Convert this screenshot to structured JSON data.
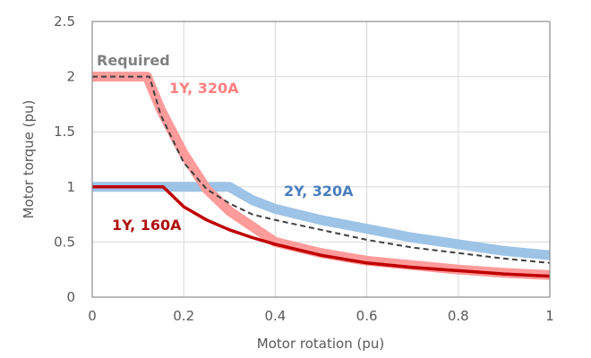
{
  "chart_data": {
    "type": "line",
    "title": "",
    "xlabel": "Motor rotation (pu)",
    "ylabel": "Motor torque (pu)",
    "xlim": [
      0,
      1
    ],
    "ylim": [
      0,
      2.5
    ],
    "xticks": [
      "0",
      "0.2",
      "0.4",
      "0.6",
      "0.8",
      "1"
    ],
    "yticks": [
      "0",
      "0.5",
      "1",
      "1.5",
      "2",
      "2.5"
    ],
    "grid": true,
    "series": [
      {
        "name": "2Y, 320A",
        "color": "#9DC3E6",
        "label_color": "#4A7EBB",
        "x": [
          0,
          0.3,
          0.35,
          0.4,
          0.5,
          0.6,
          0.7,
          0.8,
          0.9,
          1.0
        ],
        "y": [
          1,
          1,
          0.88,
          0.8,
          0.7,
          0.62,
          0.54,
          0.48,
          0.42,
          0.38
        ]
      },
      {
        "name": "1Y, 320A",
        "color": "#FF9B9B",
        "label_color": "#FF8080",
        "x": [
          0,
          0.12,
          0.15,
          0.2,
          0.25,
          0.3,
          0.4,
          0.5,
          0.6,
          0.7,
          0.8,
          0.9,
          1.0
        ],
        "y": [
          2,
          2,
          1.7,
          1.3,
          0.98,
          0.78,
          0.5,
          0.4,
          0.33,
          0.29,
          0.25,
          0.22,
          0.2
        ]
      },
      {
        "name": "Required",
        "color": "#404040",
        "label_color": "#808080",
        "x": [
          0,
          0.125,
          0.15,
          0.2,
          0.25,
          0.3,
          0.35,
          0.4,
          0.5,
          0.6,
          0.7,
          0.8,
          0.9,
          1.0
        ],
        "y": [
          2,
          2,
          1.65,
          1.22,
          0.98,
          0.85,
          0.75,
          0.7,
          0.61,
          0.52,
          0.45,
          0.4,
          0.35,
          0.31
        ]
      },
      {
        "name": "1Y, 160A",
        "color": "#C00000",
        "label_color": "#B01010",
        "x": [
          0,
          0.155,
          0.2,
          0.25,
          0.3,
          0.35,
          0.4,
          0.5,
          0.6,
          0.7,
          0.8,
          0.9,
          1.0
        ],
        "y": [
          1,
          1,
          0.82,
          0.7,
          0.61,
          0.54,
          0.48,
          0.38,
          0.31,
          0.27,
          0.24,
          0.21,
          0.19
        ]
      }
    ]
  }
}
